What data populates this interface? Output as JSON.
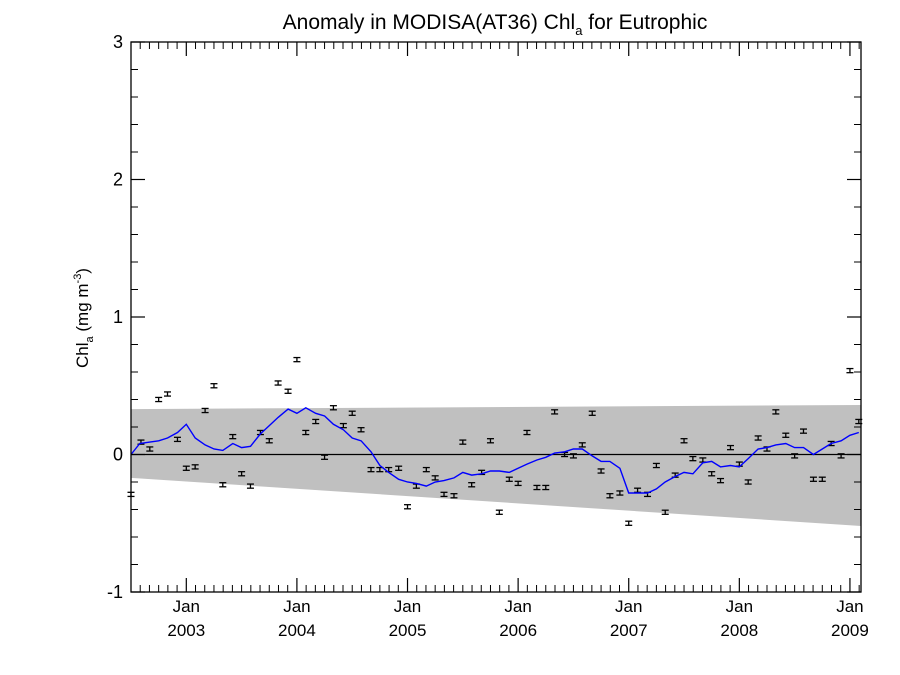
{
  "chart_data": {
    "type": "line",
    "title": {
      "main": "Anomaly in MODISA(AT36) Chl",
      "sub": "a",
      "rest": " for Eutrophic"
    },
    "ylabel": {
      "main": "Chl",
      "sub": "a",
      "mid": " (mg m",
      "sup": "-3",
      "end": ")"
    },
    "xlim": [
      2002.5,
      2009.1
    ],
    "ylim": [
      -1,
      3
    ],
    "yticks": [
      -1,
      0,
      1,
      2,
      3
    ],
    "ytick_labels": [
      "-1",
      "0",
      "1",
      "2",
      "3"
    ],
    "xticks": [
      {
        "x": 2003.0,
        "month": "Jan",
        "year": "2003"
      },
      {
        "x": 2004.0,
        "month": "Jan",
        "year": "2004"
      },
      {
        "x": 2005.0,
        "month": "Jan",
        "year": "2005"
      },
      {
        "x": 2006.0,
        "month": "Jan",
        "year": "2006"
      },
      {
        "x": 2007.0,
        "month": "Jan",
        "year": "2007"
      },
      {
        "x": 2008.0,
        "month": "Jan",
        "year": "2008"
      },
      {
        "x": 2009.0,
        "month": "Jan",
        "year": "2009"
      }
    ],
    "band": {
      "x": [
        2002.5,
        2009.1
      ],
      "lower": [
        -0.17,
        -0.52
      ],
      "upper": [
        0.33,
        0.36
      ],
      "color": "#c0c0c0"
    },
    "zero_line": 0,
    "monthly_anomaly": {
      "color": "#000000",
      "error": 0.015,
      "points": [
        [
          2002.5,
          -0.29
        ],
        [
          2002.59,
          0.09
        ],
        [
          2002.67,
          0.04
        ],
        [
          2002.75,
          0.4
        ],
        [
          2002.83,
          0.44
        ],
        [
          2002.92,
          0.11
        ],
        [
          2003.0,
          -0.1
        ],
        [
          2003.08,
          -0.09
        ],
        [
          2003.17,
          0.32
        ],
        [
          2003.25,
          0.5
        ],
        [
          2003.33,
          -0.22
        ],
        [
          2003.42,
          0.13
        ],
        [
          2003.5,
          -0.14
        ],
        [
          2003.58,
          -0.23
        ],
        [
          2003.67,
          0.16
        ],
        [
          2003.75,
          0.1
        ],
        [
          2003.83,
          0.52
        ],
        [
          2003.92,
          0.46
        ],
        [
          2004.0,
          0.69
        ],
        [
          2004.08,
          0.16
        ],
        [
          2004.17,
          0.24
        ],
        [
          2004.25,
          -0.02
        ],
        [
          2004.33,
          0.34
        ],
        [
          2004.42,
          0.21
        ],
        [
          2004.5,
          0.3
        ],
        [
          2004.58,
          0.18
        ],
        [
          2004.67,
          -0.11
        ],
        [
          2004.75,
          -0.11
        ],
        [
          2004.83,
          -0.11
        ],
        [
          2004.92,
          -0.1
        ],
        [
          2005.0,
          -0.38
        ],
        [
          2005.08,
          -0.23
        ],
        [
          2005.17,
          -0.11
        ],
        [
          2005.25,
          -0.17
        ],
        [
          2005.33,
          -0.29
        ],
        [
          2005.42,
          -0.3
        ],
        [
          2005.5,
          0.09
        ],
        [
          2005.58,
          -0.22
        ],
        [
          2005.67,
          -0.13
        ],
        [
          2005.75,
          0.1
        ],
        [
          2005.83,
          -0.42
        ],
        [
          2005.92,
          -0.18
        ],
        [
          2006.0,
          -0.21
        ],
        [
          2006.08,
          0.16
        ],
        [
          2006.17,
          -0.24
        ],
        [
          2006.25,
          -0.24
        ],
        [
          2006.33,
          0.31
        ],
        [
          2006.42,
          0.0
        ],
        [
          2006.5,
          -0.01
        ],
        [
          2006.58,
          0.07
        ],
        [
          2006.67,
          0.3
        ],
        [
          2006.75,
          -0.12
        ],
        [
          2006.83,
          -0.3
        ],
        [
          2006.92,
          -0.28
        ],
        [
          2007.0,
          -0.5
        ],
        [
          2007.08,
          -0.26
        ],
        [
          2007.17,
          -0.29
        ],
        [
          2007.25,
          -0.08
        ],
        [
          2007.33,
          -0.42
        ],
        [
          2007.42,
          -0.15
        ],
        [
          2007.5,
          0.1
        ],
        [
          2007.58,
          -0.03
        ],
        [
          2007.67,
          -0.04
        ],
        [
          2007.75,
          -0.14
        ],
        [
          2007.83,
          -0.19
        ],
        [
          2007.92,
          0.05
        ],
        [
          2008.0,
          -0.07
        ],
        [
          2008.08,
          -0.2
        ],
        [
          2008.17,
          0.12
        ],
        [
          2008.25,
          0.04
        ],
        [
          2008.33,
          0.31
        ],
        [
          2008.42,
          0.14
        ],
        [
          2008.5,
          -0.01
        ],
        [
          2008.58,
          0.17
        ],
        [
          2008.67,
          -0.18
        ],
        [
          2008.75,
          -0.18
        ],
        [
          2008.83,
          0.08
        ],
        [
          2008.92,
          -0.01
        ],
        [
          2009.0,
          0.61
        ],
        [
          2009.08,
          0.24
        ]
      ]
    },
    "running_mean": {
      "color": "#0000ff",
      "points": [
        [
          2002.5,
          0.0
        ],
        [
          2002.58,
          0.08
        ],
        [
          2002.67,
          0.09
        ],
        [
          2002.75,
          0.1
        ],
        [
          2002.83,
          0.12
        ],
        [
          2002.92,
          0.16
        ],
        [
          2003.0,
          0.22
        ],
        [
          2003.08,
          0.12
        ],
        [
          2003.17,
          0.07
        ],
        [
          2003.25,
          0.04
        ],
        [
          2003.33,
          0.03
        ],
        [
          2003.42,
          0.08
        ],
        [
          2003.5,
          0.05
        ],
        [
          2003.58,
          0.06
        ],
        [
          2003.67,
          0.15
        ],
        [
          2003.75,
          0.21
        ],
        [
          2003.83,
          0.27
        ],
        [
          2003.92,
          0.33
        ],
        [
          2004.0,
          0.3
        ],
        [
          2004.08,
          0.34
        ],
        [
          2004.17,
          0.3
        ],
        [
          2004.25,
          0.28
        ],
        [
          2004.33,
          0.22
        ],
        [
          2004.42,
          0.18
        ],
        [
          2004.5,
          0.12
        ],
        [
          2004.58,
          0.1
        ],
        [
          2004.67,
          0.02
        ],
        [
          2004.75,
          -0.08
        ],
        [
          2004.83,
          -0.13
        ],
        [
          2004.92,
          -0.18
        ],
        [
          2005.0,
          -0.2
        ],
        [
          2005.08,
          -0.21
        ],
        [
          2005.17,
          -0.23
        ],
        [
          2005.25,
          -0.2
        ],
        [
          2005.33,
          -0.19
        ],
        [
          2005.42,
          -0.17
        ],
        [
          2005.5,
          -0.13
        ],
        [
          2005.58,
          -0.15
        ],
        [
          2005.67,
          -0.14
        ],
        [
          2005.75,
          -0.12
        ],
        [
          2005.83,
          -0.12
        ],
        [
          2005.92,
          -0.13
        ],
        [
          2006.0,
          -0.1
        ],
        [
          2006.08,
          -0.07
        ],
        [
          2006.17,
          -0.04
        ],
        [
          2006.25,
          -0.02
        ],
        [
          2006.33,
          0.01
        ],
        [
          2006.42,
          0.02
        ],
        [
          2006.5,
          0.04
        ],
        [
          2006.58,
          0.04
        ],
        [
          2006.67,
          -0.01
        ],
        [
          2006.75,
          -0.05
        ],
        [
          2006.83,
          -0.05
        ],
        [
          2006.92,
          -0.1
        ],
        [
          2007.0,
          -0.28
        ],
        [
          2007.08,
          -0.28
        ],
        [
          2007.17,
          -0.28
        ],
        [
          2007.25,
          -0.25
        ],
        [
          2007.33,
          -0.2
        ],
        [
          2007.42,
          -0.16
        ],
        [
          2007.5,
          -0.13
        ],
        [
          2007.58,
          -0.14
        ],
        [
          2007.67,
          -0.06
        ],
        [
          2007.75,
          -0.05
        ],
        [
          2007.83,
          -0.09
        ],
        [
          2007.92,
          -0.08
        ],
        [
          2008.0,
          -0.09
        ],
        [
          2008.08,
          -0.03
        ],
        [
          2008.17,
          0.04
        ],
        [
          2008.25,
          0.05
        ],
        [
          2008.33,
          0.07
        ],
        [
          2008.42,
          0.08
        ],
        [
          2008.5,
          0.05
        ],
        [
          2008.58,
          0.05
        ],
        [
          2008.67,
          0.0
        ],
        [
          2008.75,
          0.04
        ],
        [
          2008.83,
          0.08
        ],
        [
          2008.92,
          0.1
        ],
        [
          2009.0,
          0.14
        ],
        [
          2009.08,
          0.16
        ]
      ]
    },
    "grid": false,
    "legend": "none"
  }
}
